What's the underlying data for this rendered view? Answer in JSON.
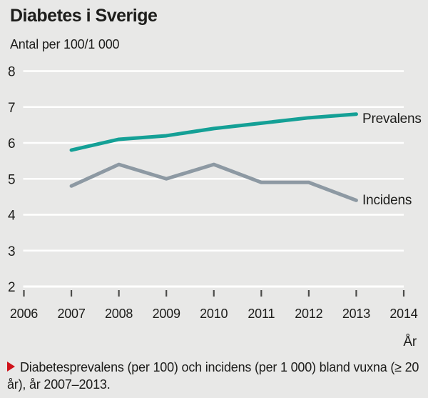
{
  "colors": {
    "background": "#e8e8e7",
    "gridline": "#ffffff",
    "text": "#1d1d1b",
    "tick": "#4b4b49",
    "accent_red": "#d0121a",
    "prevalens_line": "#14a096",
    "incidens_line": "#8d99a3"
  },
  "header": {
    "title": "Diabetes i Sverige",
    "subtitle": "Antal per 100/1 000"
  },
  "chart_data": {
    "type": "line",
    "title": "Diabetes i Sverige",
    "unit_note": "Antal per 100/1 000",
    "xlabel": "År",
    "ylabel": "",
    "xlim": [
      2006,
      2014
    ],
    "ylim": [
      2,
      8
    ],
    "x_ticks": [
      2006,
      2007,
      2008,
      2009,
      2010,
      2011,
      2012,
      2013,
      2014
    ],
    "y_ticks": [
      2,
      3,
      4,
      5,
      6,
      7,
      8
    ],
    "grid": true,
    "legend_position": "right-of-line-ends",
    "categories": [
      2007,
      2008,
      2009,
      2010,
      2011,
      2012,
      2013
    ],
    "series": [
      {
        "name": "Prevalens",
        "color": "#14a096",
        "values": [
          5.8,
          6.1,
          6.2,
          6.4,
          6.55,
          6.7,
          6.8
        ]
      },
      {
        "name": "Incidens",
        "color": "#8d99a3",
        "values": [
          4.8,
          5.4,
          5.0,
          5.4,
          4.9,
          4.9,
          4.4
        ]
      }
    ]
  },
  "caption": {
    "text": "Diabetesprevalens (per 100) och incidens (per 1 000) bland vuxna (≥ 20 år), år 2007–2013."
  }
}
